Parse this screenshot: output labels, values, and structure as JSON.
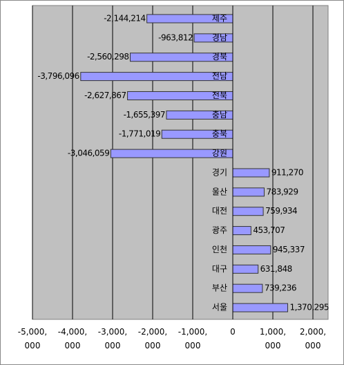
{
  "chart_data": {
    "type": "bar",
    "orientation": "horizontal",
    "categories": [
      "제주",
      "경남",
      "경북",
      "전남",
      "전북",
      "충남",
      "충북",
      "강원",
      "경기",
      "울산",
      "대전",
      "광주",
      "인천",
      "대구",
      "부산",
      "서울"
    ],
    "values": [
      -2144214,
      -963812,
      -2560298,
      -3796096,
      -2627867,
      -1655397,
      -1771019,
      -3046059,
      911270,
      783929,
      759934,
      453707,
      945337,
      631848,
      739236,
      1370295
    ],
    "value_labels": [
      "-2,144,214",
      "-963,812",
      "-2,560,298",
      "-3,796,096",
      "-2,627,867",
      "-1,655,397",
      "-1,771,019",
      "-3,046,059",
      "911,270",
      "783,929",
      "759,934",
      "453,707",
      "945,337",
      "631,848",
      "739,236",
      "1,370,295"
    ],
    "color": "#9999ff",
    "xlim": [
      -5000000,
      2000000
    ],
    "xticks": [
      {
        "value": -5000000,
        "label": "-5,000,000"
      },
      {
        "value": -4000000,
        "label": "-4,000,000"
      },
      {
        "value": -3000000,
        "label": "-3,000,000"
      },
      {
        "value": -2000000,
        "label": "-2,000,000"
      },
      {
        "value": -1000000,
        "label": "-1,000,000"
      },
      0,
      {
        "value": 1000000,
        "label": "1,000,000"
      },
      {
        "value": 2000000,
        "label": "2,000,000"
      }
    ],
    "grid": true
  }
}
